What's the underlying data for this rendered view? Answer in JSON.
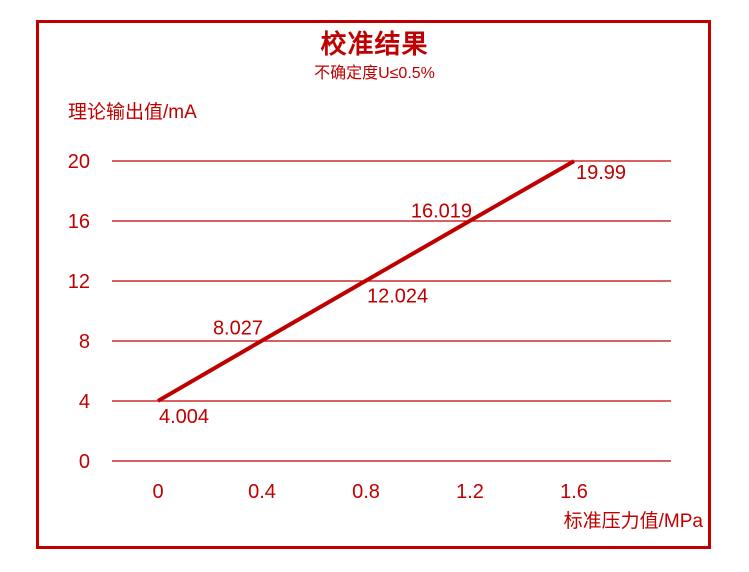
{
  "chart_data": {
    "type": "line",
    "title": "校准结果",
    "subtitle": "不确定度U≤0.5%",
    "xlabel": "标准压力值/MPa",
    "ylabel": "理论输出值/mA",
    "x": [
      0,
      0.4,
      0.8,
      1.2,
      1.6
    ],
    "y": [
      4.004,
      8.027,
      12.024,
      16.019,
      19.99
    ],
    "point_labels": [
      "4.004",
      "8.027",
      "12.024",
      "16.019",
      "19.99"
    ],
    "point_label_side": [
      "below",
      "above",
      "below",
      "above",
      "below"
    ],
    "x_ticks": [
      "0",
      "0.4",
      "0.8",
      "1.2",
      "1.6"
    ],
    "y_ticks": [
      0,
      4,
      8,
      12,
      16,
      20
    ],
    "xlim": [
      0,
      2.0
    ],
    "ylim": [
      0,
      20
    ],
    "grid": "horizontal",
    "legend": "none",
    "line_color": "#c00000",
    "frame_color": "#c00000",
    "background_color": "#ffffff"
  }
}
